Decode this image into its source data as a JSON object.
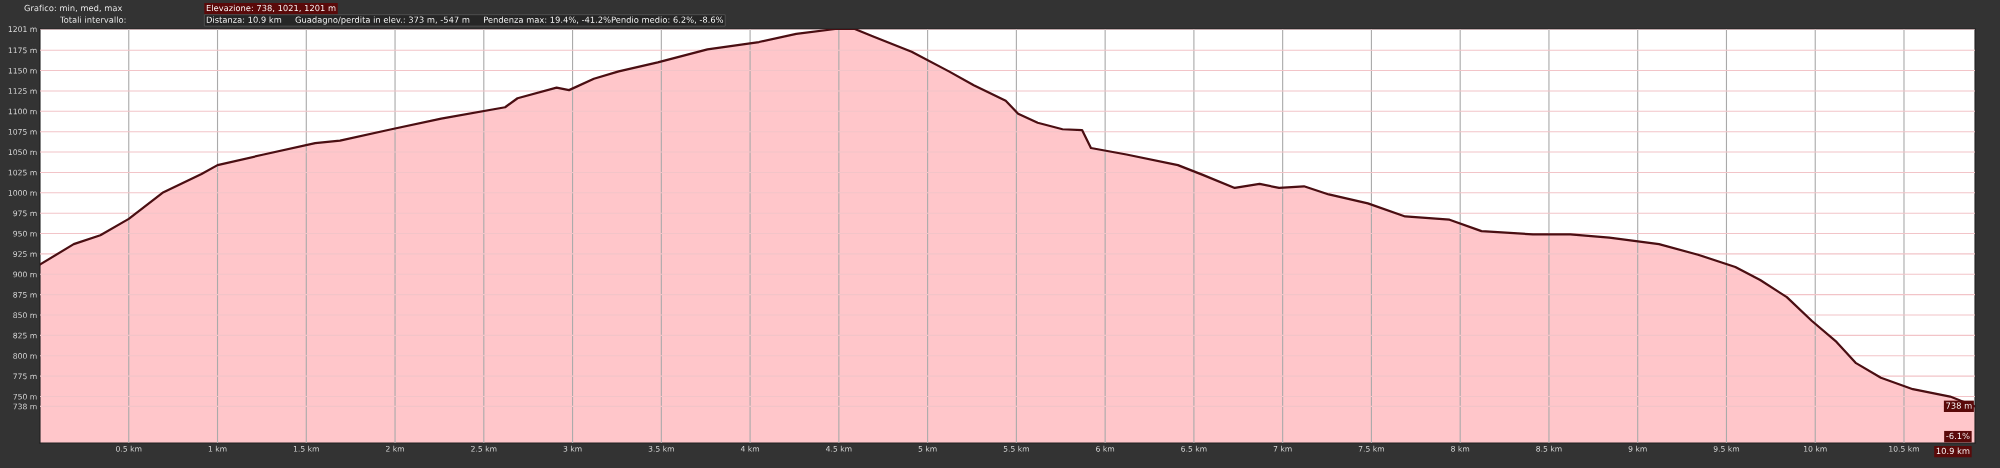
{
  "chart_data": {
    "type": "area",
    "x": [
      0,
      0.19,
      0.34,
      0.5,
      0.69,
      0.91,
      1.0,
      1.26,
      1.55,
      1.69,
      1.98,
      2.26,
      2.62,
      2.69,
      2.91,
      2.98,
      3.12,
      3.26,
      3.48,
      3.76,
      4.05,
      4.26,
      4.48,
      4.59,
      4.69,
      4.91,
      5.12,
      5.26,
      5.44,
      5.51,
      5.62,
      5.76,
      5.87,
      5.92,
      6.12,
      6.41,
      6.55,
      6.73,
      6.87,
      6.98,
      7.12,
      7.26,
      7.48,
      7.69,
      7.94,
      8.12,
      8.41,
      8.62,
      8.84,
      9.12,
      9.34,
      9.55,
      9.69,
      9.84,
      9.98,
      10.12,
      10.23,
      10.37,
      10.55,
      10.76,
      10.9
    ],
    "series": [
      {
        "color": "#4a0e12",
        "values": [
          912,
          937,
          948,
          968,
          1000,
          1023,
          1034,
          1047,
          1061,
          1064,
          1078,
          1091,
          1105,
          1116,
          1129,
          1126,
          1140,
          1149,
          1160,
          1176,
          1185,
          1195,
          1201,
          1201,
          1192,
          1173,
          1149,
          1132,
          1113,
          1097,
          1086,
          1078,
          1077,
          1055,
          1047,
          1034,
          1022,
          1006,
          1011,
          1006,
          1008,
          998,
          987,
          971,
          967,
          953,
          949,
          949,
          945,
          937,
          924,
          909,
          893,
          872,
          843,
          817,
          791,
          773,
          759,
          750,
          738
        ]
      }
    ],
    "xlim": [
      0,
      10.9
    ],
    "ylim": [
      693,
      1201
    ],
    "xticks": [
      {
        "value": 0.5,
        "label": "0.5 km"
      },
      {
        "value": 1,
        "label": "1 km"
      },
      {
        "value": 1.5,
        "label": "1.5 km"
      },
      {
        "value": 2,
        "label": "2 km"
      },
      {
        "value": 2.5,
        "label": "2.5 km"
      },
      {
        "value": 3,
        "label": "3 km"
      },
      {
        "value": 3.5,
        "label": "3.5 km"
      },
      {
        "value": 4,
        "label": "4 km"
      },
      {
        "value": 4.5,
        "label": "4.5 km"
      },
      {
        "value": 5,
        "label": "5 km"
      },
      {
        "value": 5.5,
        "label": "5.5 km"
      },
      {
        "value": 6,
        "label": "6 km"
      },
      {
        "value": 6.5,
        "label": "6.5 km"
      },
      {
        "value": 7,
        "label": "7 km"
      },
      {
        "value": 7.5,
        "label": "7.5 km"
      },
      {
        "value": 8,
        "label": "8 km"
      },
      {
        "value": 8.5,
        "label": "8.5 km"
      },
      {
        "value": 9,
        "label": "9 km"
      },
      {
        "value": 9.5,
        "label": "9.5 km"
      },
      {
        "value": 10,
        "label": "10 km"
      },
      {
        "value": 10.5,
        "label": "10.5 km"
      }
    ],
    "yticks": [
      {
        "value": 738,
        "label": "738 m"
      },
      {
        "value": 750,
        "label": "750 m"
      },
      {
        "value": 775,
        "label": "775 m"
      },
      {
        "value": 800,
        "label": "800 m"
      },
      {
        "value": 825,
        "label": "825 m"
      },
      {
        "value": 850,
        "label": "850 m"
      },
      {
        "value": 875,
        "label": "875 m"
      },
      {
        "value": 900,
        "label": "900 m"
      },
      {
        "value": 925,
        "label": "925 m"
      },
      {
        "value": 950,
        "label": "950 m"
      },
      {
        "value": 975,
        "label": "975 m"
      },
      {
        "value": 1000,
        "label": "1000 m"
      },
      {
        "value": 1025,
        "label": "1025 m"
      },
      {
        "value": 1050,
        "label": "1050 m"
      },
      {
        "value": 1075,
        "label": "1075 m"
      },
      {
        "value": 1100,
        "label": "1100 m"
      },
      {
        "value": 1125,
        "label": "1125 m"
      },
      {
        "value": 1150,
        "label": "1150 m"
      },
      {
        "value": 1175,
        "label": "1175 m"
      },
      {
        "value": 1201,
        "label": "1201 m"
      }
    ],
    "grid": true,
    "annotations": [
      "Grafico: min, med, max",
      "Elevazione: 738, 1021, 1201 m",
      "Totali intervallo:",
      "Distanza: 10.9 km     Guadagno/perdita in elev.: 373 m, -547 m     Pendenza max: 19.4%, -41.2%Pendio medio: 6.2%, -8.6%",
      "-6.1%",
      "10.9 km",
      {
        "text": "738 m",
        "x": 10.9,
        "y": 738
      }
    ]
  }
}
